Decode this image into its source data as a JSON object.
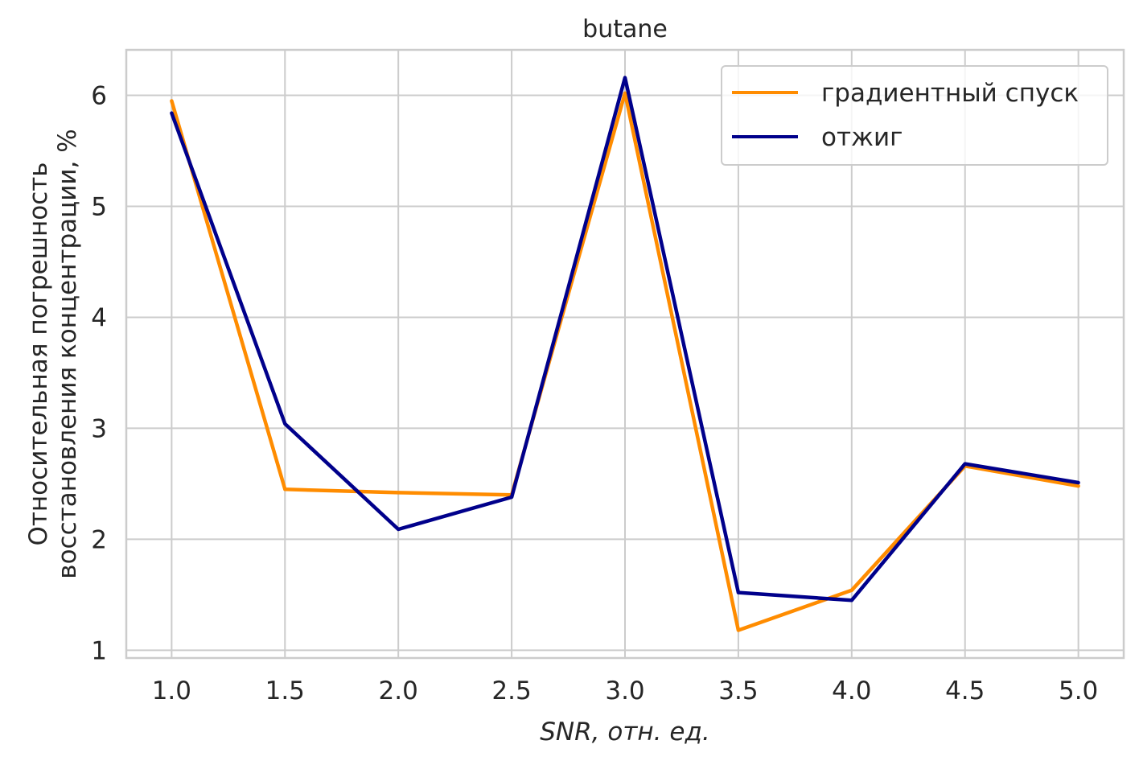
{
  "chart_data": {
    "type": "line",
    "title": "butane",
    "xlabel": "SNR, отн. ед.",
    "ylabel_lines": [
      "Относительная погрешность",
      "восстановления концентрации, %"
    ],
    "x": [
      1.0,
      1.5,
      2.0,
      2.5,
      3.0,
      3.5,
      4.0,
      4.5,
      5.0
    ],
    "xticks": [
      "1.0",
      "1.5",
      "2.0",
      "2.5",
      "3.0",
      "3.5",
      "4.0",
      "4.5",
      "5.0"
    ],
    "yticks": [
      "1",
      "2",
      "3",
      "4",
      "5",
      "6"
    ],
    "xlim": [
      0.8,
      5.2
    ],
    "ylim": [
      0.93,
      6.41
    ],
    "grid": true,
    "legend_position": "top-right",
    "series": [
      {
        "name": "градиентный спуск",
        "color": "#ff8c00",
        "values": [
          5.95,
          2.45,
          2.42,
          2.4,
          6.02,
          1.18,
          1.54,
          2.66,
          2.48
        ]
      },
      {
        "name": "отжиг",
        "color": "#00008b",
        "values": [
          5.84,
          3.04,
          2.09,
          2.38,
          6.16,
          1.52,
          1.45,
          2.68,
          2.51
        ]
      }
    ]
  }
}
